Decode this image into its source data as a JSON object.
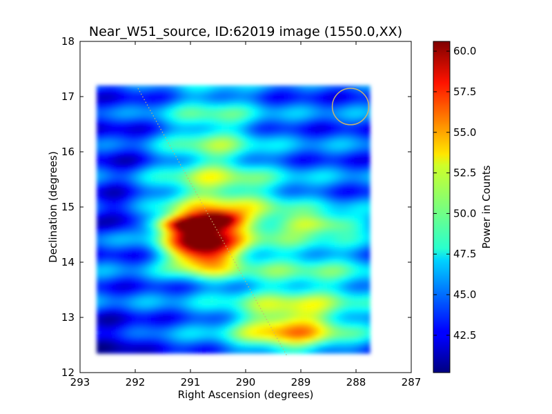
{
  "chart_data": {
    "type": "heatmap",
    "title": "Near_W51_source, ID:62019 image (1550.0,XX)",
    "xlabel": "Right Ascension (degrees)",
    "ylabel": "Declination (degrees)",
    "xlim": [
      293,
      287
    ],
    "ylim": [
      12,
      18
    ],
    "x_ticks": [
      293,
      292,
      291,
      290,
      289,
      288,
      287
    ],
    "x_tick_labels": [
      "293",
      "292",
      "291",
      "290",
      "289",
      "288",
      "287"
    ],
    "y_ticks": [
      12,
      13,
      14,
      15,
      16,
      17,
      18
    ],
    "y_tick_labels": [
      "12",
      "13",
      "14",
      "15",
      "16",
      "17",
      "18"
    ],
    "colorbar": {
      "label": "Power in Counts",
      "range": [
        40.2,
        60.6
      ],
      "ticks": [
        42.5,
        45.0,
        47.5,
        50.0,
        52.5,
        55.0,
        57.5,
        60.0
      ],
      "tick_labels": [
        "42.5",
        "45.0",
        "47.5",
        "50.0",
        "52.5",
        "55.0",
        "57.5",
        "60.0"
      ],
      "colormap": "jet"
    },
    "data_extent": {
      "ra": [
        292.7,
        287.75
      ],
      "dec": [
        12.35,
        17.2
      ]
    },
    "background_level": 44.5,
    "features": [
      {
        "ra": 290.8,
        "dec": 14.3,
        "peak": 60.5,
        "sigma_ra": 0.45,
        "sigma_dec": 0.3
      },
      {
        "ra": 291.0,
        "dec": 14.7,
        "peak": 55.5,
        "sigma_ra": 0.5,
        "sigma_dec": 0.1
      },
      {
        "ra": 290.5,
        "dec": 14.8,
        "peak": 53.0,
        "sigma_ra": 0.3,
        "sigma_dec": 0.1
      },
      {
        "ra": 289.2,
        "dec": 12.8,
        "peak": 53.0,
        "sigma_ra": 0.7,
        "sigma_dec": 0.35
      },
      {
        "ra": 288.6,
        "dec": 14.7,
        "peak": 51.0,
        "sigma_ra": 0.6,
        "sigma_dec": 0.12
      },
      {
        "ra": 290.6,
        "dec": 16.2,
        "peak": 49.5,
        "sigma_ra": 0.6,
        "sigma_dec": 0.8
      },
      {
        "ra": 290.5,
        "dec": 15.1,
        "peak": 49.0,
        "sigma_ra": 1.0,
        "sigma_dec": 0.4
      },
      {
        "ra": 289.6,
        "dec": 14.0,
        "peak": 48.0,
        "sigma_ra": 0.9,
        "sigma_dec": 0.8
      },
      {
        "ra": 288.3,
        "dec": 13.6,
        "peak": 47.0,
        "sigma_ra": 0.7,
        "sigma_dec": 0.6
      },
      {
        "ra": 292.4,
        "dec": 12.6,
        "peak": 41.5,
        "sigma_ra": 0.4,
        "sigma_dec": 0.3
      },
      {
        "ra": 292.2,
        "dec": 14.9,
        "peak": 41.8,
        "sigma_ra": 0.3,
        "sigma_dec": 0.2
      },
      {
        "ra": 292.3,
        "dec": 15.8,
        "peak": 43.0,
        "sigma_ra": 0.4,
        "sigma_dec": 1.0
      }
    ],
    "annotations": {
      "circle": {
        "ra": 288.1,
        "dec": 16.82,
        "radius_deg": 0.33,
        "color": "#c8b46e"
      },
      "dotted_line": {
        "from": [
          291.95,
          17.15
        ],
        "to": [
          289.25,
          12.3
        ],
        "color": "#c8b46e"
      }
    },
    "grid": false,
    "legend": "none"
  }
}
